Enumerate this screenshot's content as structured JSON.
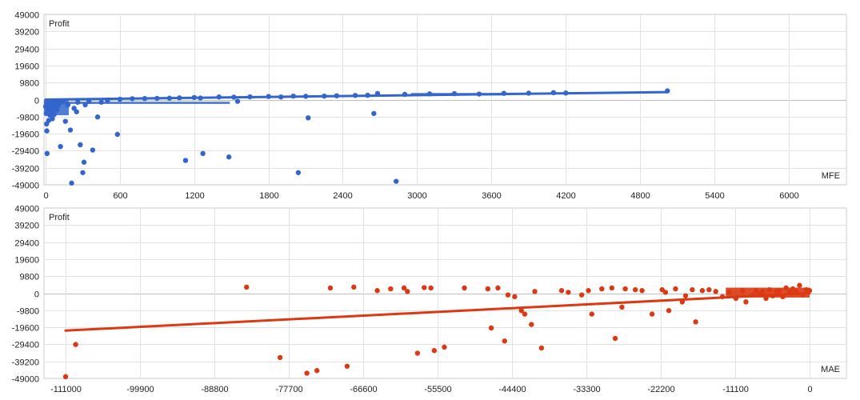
{
  "chart_data": [
    {
      "type": "scatter",
      "title": "",
      "ylabel": "Profit",
      "xlabel": "MFE",
      "xlim": [
        0,
        6300
      ],
      "ylim": [
        -49000,
        49000
      ],
      "x_ticks": [
        "0",
        "600",
        "1200",
        "1800",
        "2400",
        "3000",
        "3600",
        "4200",
        "4800",
        "5400",
        "6000"
      ],
      "y_ticks": [
        "49000",
        "39200",
        "29400",
        "19600",
        "9800",
        "0",
        "-9800",
        "-19600",
        "-29400",
        "-39200",
        "-49000"
      ],
      "grid": true,
      "legend": "none",
      "color": "#3366cc",
      "trendline": [
        [
          0,
          0
        ],
        [
          5020,
          4300
        ]
      ],
      "points": [
        [
          0,
          -4000
        ],
        [
          5,
          -8000
        ],
        [
          8,
          -14000
        ],
        [
          10,
          -18000
        ],
        [
          12,
          -31000
        ],
        [
          15,
          -2000
        ],
        [
          20,
          -6000
        ],
        [
          25,
          -12000
        ],
        [
          30,
          -3000
        ],
        [
          35,
          -9000
        ],
        [
          40,
          -1500
        ],
        [
          45,
          -5000
        ],
        [
          50,
          -7000
        ],
        [
          55,
          -11000
        ],
        [
          60,
          -2500
        ],
        [
          65,
          -4500
        ],
        [
          70,
          -8500
        ],
        [
          80,
          -1000
        ],
        [
          90,
          -6000
        ],
        [
          100,
          -3500
        ],
        [
          110,
          -2000
        ],
        [
          120,
          -27000
        ],
        [
          140,
          -1200
        ],
        [
          160,
          -12500
        ],
        [
          180,
          -3000
        ],
        [
          200,
          -17500
        ],
        [
          210,
          -48000
        ],
        [
          230,
          -5000
        ],
        [
          250,
          -7000
        ],
        [
          260,
          -1500
        ],
        [
          280,
          -26000
        ],
        [
          300,
          -42000
        ],
        [
          310,
          -36000
        ],
        [
          320,
          -3000
        ],
        [
          350,
          -1000
        ],
        [
          380,
          -29000
        ],
        [
          420,
          -10000
        ],
        [
          450,
          -1500
        ],
        [
          500,
          -500
        ],
        [
          580,
          -20000
        ],
        [
          600,
          200
        ],
        [
          700,
          500
        ],
        [
          800,
          600
        ],
        [
          900,
          700
        ],
        [
          1000,
          800
        ],
        [
          1080,
          1000
        ],
        [
          1130,
          -35000
        ],
        [
          1200,
          1200
        ],
        [
          1250,
          900
        ],
        [
          1270,
          -31000
        ],
        [
          1400,
          1500
        ],
        [
          1480,
          -33000
        ],
        [
          1520,
          1400
        ],
        [
          1550,
          -1000
        ],
        [
          1650,
          1600
        ],
        [
          1800,
          1800
        ],
        [
          1900,
          1500
        ],
        [
          2000,
          2000
        ],
        [
          2040,
          -42000
        ],
        [
          2100,
          1900
        ],
        [
          2120,
          -10500
        ],
        [
          2250,
          2000
        ],
        [
          2350,
          2200
        ],
        [
          2500,
          2400
        ],
        [
          2600,
          2500
        ],
        [
          2650,
          -8000
        ],
        [
          2680,
          3500
        ],
        [
          2830,
          -47000
        ],
        [
          2900,
          3000
        ],
        [
          3100,
          3300
        ],
        [
          3300,
          3400
        ],
        [
          3500,
          3200
        ],
        [
          3700,
          3600
        ],
        [
          3900,
          3700
        ],
        [
          4100,
          4000
        ],
        [
          4200,
          3800
        ],
        [
          5020,
          5000
        ]
      ]
    },
    {
      "type": "scatter",
      "title": "",
      "ylabel": "Profit",
      "xlabel": "MAE",
      "xlim": [
        -113000,
        4000
      ],
      "ylim": [
        -49000,
        49000
      ],
      "x_ticks": [
        "-111000",
        "-99900",
        "-88800",
        "-77700",
        "-66600",
        "-55500",
        "-44400",
        "-33300",
        "-22200",
        "-11100",
        "0"
      ],
      "y_ticks": [
        "49000",
        "39200",
        "29400",
        "19600",
        "9800",
        "0",
        "-9800",
        "-19600",
        "-29400",
        "-39200",
        "-49000"
      ],
      "grid": true,
      "legend": "none",
      "color": "#dc3912",
      "trendline": [
        [
          -111000,
          -21500
        ],
        [
          0,
          0
        ]
      ],
      "points": [
        [
          -111000,
          -48000
        ],
        [
          -109500,
          -29500
        ],
        [
          -84000,
          3500
        ],
        [
          -79000,
          -37000
        ],
        [
          -75000,
          -46000
        ],
        [
          -73500,
          -44500
        ],
        [
          -71500,
          3000
        ],
        [
          -69000,
          -42000
        ],
        [
          -68000,
          3500
        ],
        [
          -64500,
          1500
        ],
        [
          -62500,
          2500
        ],
        [
          -60500,
          3000
        ],
        [
          -60000,
          1000
        ],
        [
          -58500,
          -34500
        ],
        [
          -57500,
          3200
        ],
        [
          -56500,
          3000
        ],
        [
          -56000,
          -33000
        ],
        [
          -54500,
          -31000
        ],
        [
          -51500,
          3000
        ],
        [
          -48000,
          2500
        ],
        [
          -47500,
          -20000
        ],
        [
          -46500,
          3000
        ],
        [
          -45500,
          -27500
        ],
        [
          -45000,
          -1000
        ],
        [
          -44000,
          -2000
        ],
        [
          -43000,
          -10000
        ],
        [
          -42500,
          -12000
        ],
        [
          -41500,
          -18000
        ],
        [
          -41000,
          1000
        ],
        [
          -40000,
          -31500
        ],
        [
          -37000,
          1500
        ],
        [
          -36000,
          500
        ],
        [
          -34000,
          -1000
        ],
        [
          -33000,
          1500
        ],
        [
          -32500,
          -12000
        ],
        [
          -31000,
          2500
        ],
        [
          -29500,
          3000
        ],
        [
          -29000,
          -26000
        ],
        [
          -28000,
          -8000
        ],
        [
          -27500,
          2500
        ],
        [
          -26000,
          2000
        ],
        [
          -25000,
          1500
        ],
        [
          -23500,
          -12000
        ],
        [
          -22000,
          2000
        ],
        [
          -21500,
          500
        ],
        [
          -21000,
          -10000
        ],
        [
          -20000,
          2500
        ],
        [
          -19000,
          -5000
        ],
        [
          -18500,
          -1500
        ],
        [
          -17500,
          2000
        ],
        [
          -17000,
          -16500
        ],
        [
          -16000,
          1500
        ],
        [
          -15000,
          2000
        ],
        [
          -14000,
          1000
        ],
        [
          -13000,
          -2000
        ],
        [
          -12000,
          500
        ],
        [
          -11000,
          -3000
        ],
        [
          -10000,
          1500
        ],
        [
          -9500,
          -5000
        ],
        [
          -8500,
          -1000
        ],
        [
          -8000,
          1500
        ],
        [
          -7500,
          -500
        ],
        [
          -7000,
          1000
        ],
        [
          -6500,
          -3000
        ],
        [
          -6000,
          2000
        ],
        [
          -5500,
          -1500
        ],
        [
          -5000,
          1000
        ],
        [
          -4500,
          1500
        ],
        [
          -4000,
          -2000
        ],
        [
          -3500,
          3000
        ],
        [
          -3000,
          500
        ],
        [
          -2500,
          2500
        ],
        [
          -2000,
          1000
        ],
        [
          -1500,
          4500
        ],
        [
          -1000,
          -1000
        ],
        [
          -500,
          2000
        ],
        [
          0,
          1500
        ]
      ]
    }
  ]
}
